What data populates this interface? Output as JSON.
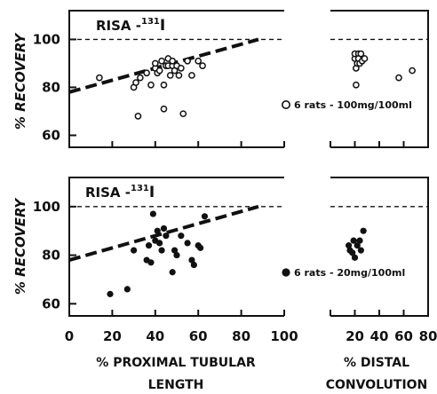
{
  "chart_data": [
    {
      "type": "scatter",
      "title": "RISA - 131I",
      "title_parts": {
        "main": "RISA -",
        "sup": "131",
        "sub_el": "I"
      },
      "ylabel": "% RECOVERY",
      "ylim": [
        55,
        112
      ],
      "yticks": [
        60,
        80,
        100
      ],
      "reference_line_y": 100,
      "marker": "open",
      "legend_text": "6 rats - 100mg/100ml",
      "legend_placement": "lower-right",
      "series": [
        {
          "name": "proximal",
          "panel_xlim": [
            0,
            100
          ],
          "points": [
            [
              14,
              84
            ],
            [
              30,
              80
            ],
            [
              31,
              82
            ],
            [
              32,
              68
            ],
            [
              33,
              84
            ],
            [
              36,
              86
            ],
            [
              38,
              81
            ],
            [
              40,
              88
            ],
            [
              40,
              90
            ],
            [
              41,
              86
            ],
            [
              42,
              87
            ],
            [
              43,
              91
            ],
            [
              44,
              71
            ],
            [
              44,
              81
            ],
            [
              45,
              89
            ],
            [
              46,
              89
            ],
            [
              46,
              92
            ],
            [
              47,
              85
            ],
            [
              48,
              89
            ],
            [
              48,
              91
            ],
            [
              49,
              87
            ],
            [
              50,
              89
            ],
            [
              51,
              85
            ],
            [
              52,
              88
            ],
            [
              53,
              69
            ],
            [
              55,
              91
            ],
            [
              57,
              85
            ],
            [
              60,
              91
            ],
            [
              62,
              89
            ]
          ]
        },
        {
          "name": "distal",
          "panel_xlim": [
            0,
            80
          ],
          "points": [
            [
              20,
              92
            ],
            [
              20,
              94
            ],
            [
              21,
              88
            ],
            [
              21,
              81
            ],
            [
              22,
              90
            ],
            [
              23,
              94
            ],
            [
              23,
              92
            ],
            [
              24,
              90
            ],
            [
              25,
              94
            ],
            [
              26,
              91
            ],
            [
              28,
              92
            ],
            [
              56,
              84
            ],
            [
              67,
              87
            ]
          ]
        }
      ],
      "trend_line": {
        "x": [
          0,
          88
        ],
        "y": [
          78,
          100
        ]
      }
    },
    {
      "type": "scatter",
      "title": "RISA - 131I",
      "title_parts": {
        "main": "RISA -",
        "sup": "131",
        "sub_el": "I"
      },
      "ylabel": "% RECOVERY",
      "ylim": [
        55,
        112
      ],
      "yticks": [
        60,
        80,
        100
      ],
      "reference_line_y": 100,
      "marker": "filled",
      "legend_text": "6 rats - 20mg/100ml",
      "legend_placement": "lower-right",
      "series": [
        {
          "name": "proximal",
          "panel_xlim": [
            0,
            100
          ],
          "points": [
            [
              19,
              64
            ],
            [
              27,
              66
            ],
            [
              30,
              82
            ],
            [
              36,
              78
            ],
            [
              37,
              84
            ],
            [
              38,
              77
            ],
            [
              39,
              97
            ],
            [
              40,
              86
            ],
            [
              41,
              90
            ],
            [
              42,
              85
            ],
            [
              43,
              82
            ],
            [
              44,
              91
            ],
            [
              45,
              88
            ],
            [
              48,
              73
            ],
            [
              49,
              82
            ],
            [
              50,
              80
            ],
            [
              52,
              88
            ],
            [
              55,
              85
            ],
            [
              57,
              78
            ],
            [
              58,
              76
            ],
            [
              60,
              84
            ],
            [
              61,
              83
            ],
            [
              63,
              96
            ]
          ]
        },
        {
          "name": "distal",
          "panel_xlim": [
            0,
            80
          ],
          "points": [
            [
              15,
              84
            ],
            [
              16,
              82
            ],
            [
              18,
              81
            ],
            [
              19,
              86
            ],
            [
              20,
              79
            ],
            [
              22,
              84
            ],
            [
              24,
              86
            ],
            [
              25,
              82
            ],
            [
              27,
              90
            ]
          ]
        }
      ],
      "trend_line": {
        "x": [
          0,
          88
        ],
        "y": [
          78,
          100
        ]
      }
    }
  ],
  "axes": {
    "proximal": {
      "ticks": [
        0,
        20,
        40,
        60,
        80,
        100
      ],
      "tick_labels": [
        "0",
        "20",
        "40",
        "60",
        "80",
        "100"
      ],
      "label_line1": "% PROXIMAL TUBULAR",
      "label_line2": "LENGTH"
    },
    "distal": {
      "ticks": [
        0,
        20,
        40,
        60,
        80
      ],
      "tick_labels": [
        "20",
        "40",
        "60",
        "80"
      ],
      "label_line1": "% DISTAL",
      "label_line2": "CONVOLUTION"
    }
  }
}
